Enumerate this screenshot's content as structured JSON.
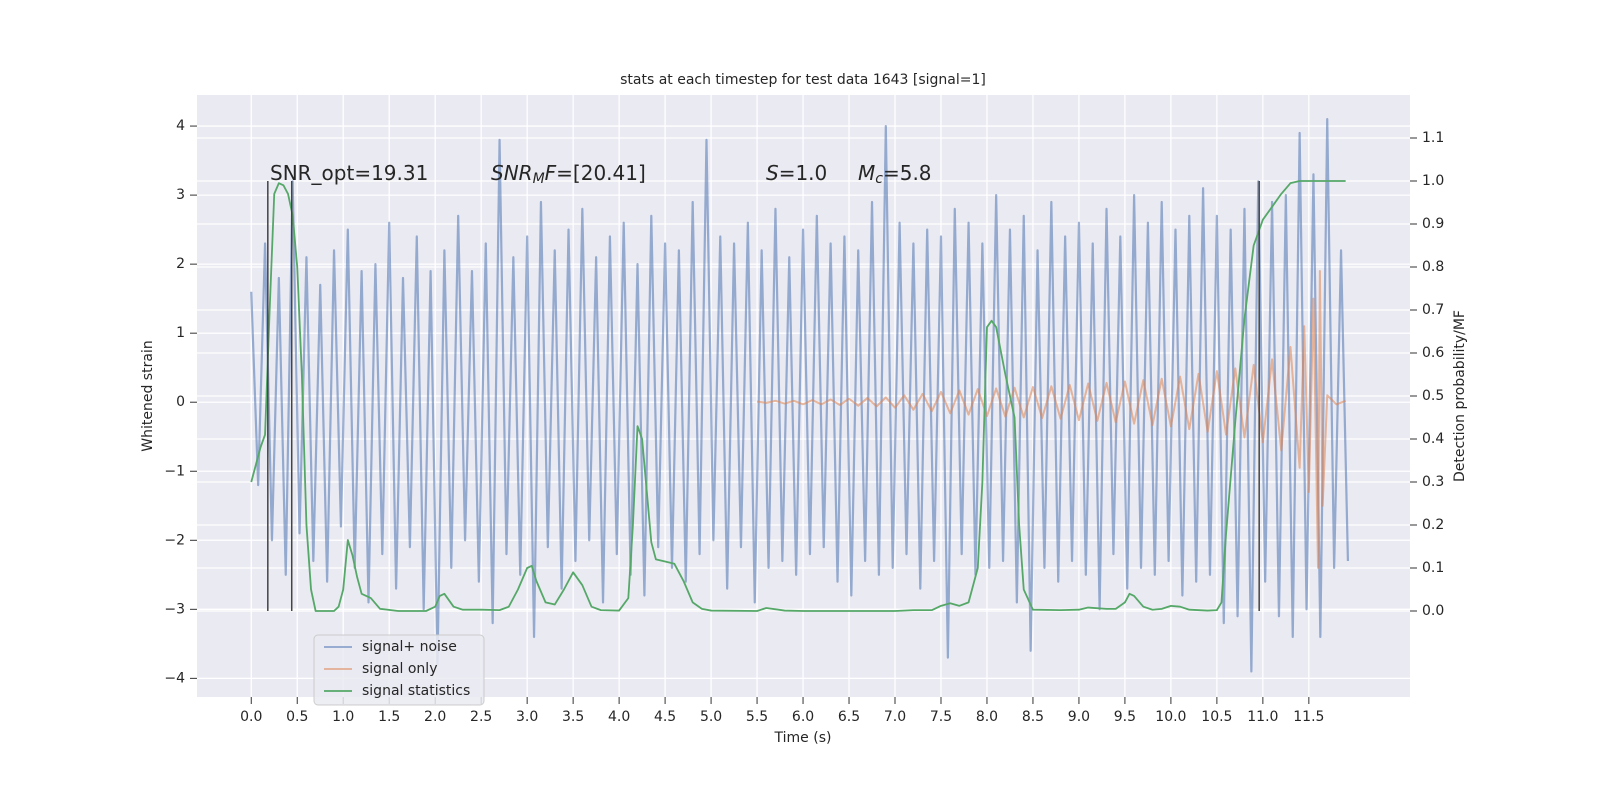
{
  "chart_data": {
    "type": "line",
    "title": "stats at each timestep for test data 1643 [signal=1]",
    "xlabel": "Time (s)",
    "ylabel": "Whitened strain",
    "y2label": "Detection probability/MF",
    "xlim": [
      -0.59,
      12.6
    ],
    "ylim": [
      -4.27,
      4.45
    ],
    "y2lim": [
      -0.2,
      1.2
    ],
    "grid": true,
    "legend": "lower left",
    "xticks": [
      {
        "value": 0,
        "label": "0.0"
      },
      0.5,
      {
        "value": 1,
        "label": "1.0"
      },
      1.5,
      {
        "value": 2,
        "label": "2.0"
      },
      2.5,
      {
        "value": 3,
        "label": "3.0"
      },
      3.5,
      {
        "value": 4,
        "label": "4.0"
      },
      4.5,
      {
        "value": 5,
        "label": "5.0"
      },
      5.5,
      {
        "value": 6,
        "label": "6.0"
      },
      6.5,
      {
        "value": 7,
        "label": "7.0"
      },
      7.5,
      {
        "value": 8,
        "label": "8.0"
      },
      8.5,
      {
        "value": 9,
        "label": "9.0"
      },
      9.5,
      {
        "value": 10,
        "label": "10.0"
      },
      10.5,
      {
        "value": 11,
        "label": "11.0"
      },
      11.5
    ],
    "yticks": [
      {
        "value": -4,
        "label": "−4"
      },
      {
        "value": -3,
        "label": "−3"
      },
      {
        "value": -2,
        "label": "−2"
      },
      {
        "value": -1,
        "label": "−1"
      },
      0,
      1,
      2,
      3,
      4
    ],
    "y2ticks": [
      {
        "value": 0,
        "label": "0.0"
      },
      0.1,
      0.2,
      0.3,
      0.4,
      0.5,
      0.6,
      0.7,
      0.8,
      0.9,
      {
        "value": 1,
        "label": "1.0"
      },
      1.1
    ],
    "annotations": [
      [
        {
          "text": "SNR_opt=19.31"
        }
      ],
      [
        {
          "text": "SNR",
          "italic": true
        },
        {
          "text": "M",
          "italic": true,
          "sub": true
        },
        {
          "text": "F",
          "italic": true
        },
        {
          "text": "=[20.41]"
        }
      ],
      [
        {
          "text": "S",
          "italic": true
        },
        {
          "text": "=1.0"
        }
      ],
      [
        {
          "text": "M",
          "italic": true
        },
        {
          "text": "c",
          "italic": true,
          "sub": true
        },
        {
          "text": "=5.8"
        }
      ]
    ],
    "vlines": {
      "x": [
        0.18,
        0.44,
        10.96
      ],
      "ymin": 0,
      "ymax": 1,
      "axis": "y2",
      "color": "#444444"
    },
    "series": [
      {
        "name": "signal+ noise",
        "color": "#4c72b0",
        "x": [
          0,
          0.075,
          0.15,
          0.225,
          0.3,
          0.375,
          0.45,
          0.525,
          0.6,
          0.675,
          0.75,
          0.825,
          0.9,
          0.975,
          1.05,
          1.125,
          1.2,
          1.275,
          1.35,
          1.425,
          1.5,
          1.575,
          1.65,
          1.725,
          1.8,
          1.875,
          1.95,
          2.025,
          2.1,
          2.175,
          2.25,
          2.325,
          2.4,
          2.475,
          2.55,
          2.625,
          2.7,
          2.775,
          2.85,
          2.925,
          3.0,
          3.075,
          3.15,
          3.225,
          3.3,
          3.375,
          3.45,
          3.525,
          3.6,
          3.675,
          3.75,
          3.825,
          3.9,
          3.975,
          4.05,
          4.125,
          4.2,
          4.275,
          4.35,
          4.425,
          4.5,
          4.575,
          4.65,
          4.725,
          4.8,
          4.875,
          4.95,
          5.025,
          5.1,
          5.175,
          5.25,
          5.325,
          5.4,
          5.475,
          5.55,
          5.625,
          5.7,
          5.775,
          5.85,
          5.925,
          6.0,
          6.075,
          6.15,
          6.225,
          6.3,
          6.375,
          6.45,
          6.525,
          6.6,
          6.675,
          6.75,
          6.825,
          6.9,
          6.975,
          7.05,
          7.125,
          7.2,
          7.275,
          7.35,
          7.425,
          7.5,
          7.575,
          7.65,
          7.725,
          7.8,
          7.875,
          7.95,
          8.025,
          8.1,
          8.175,
          8.25,
          8.325,
          8.4,
          8.475,
          8.55,
          8.625,
          8.7,
          8.775,
          8.85,
          8.925,
          9.0,
          9.075,
          9.15,
          9.225,
          9.3,
          9.375,
          9.45,
          9.525,
          9.6,
          9.675,
          9.75,
          9.825,
          9.9,
          9.975,
          10.05,
          10.125,
          10.2,
          10.275,
          10.35,
          10.425,
          10.5,
          10.575,
          10.65,
          10.725,
          10.8,
          10.875,
          10.95,
          11.025,
          11.1,
          11.175,
          11.25,
          11.325,
          11.4,
          11.475,
          11.55,
          11.625,
          11.7,
          11.775,
          11.85,
          11.925
        ],
        "values": [
          1.6,
          -1.2,
          2.3,
          -2.0,
          1.8,
          -2.5,
          3.2,
          -1.9,
          2.1,
          -2.3,
          1.7,
          -2.6,
          2.2,
          -1.8,
          2.5,
          -2.4,
          1.9,
          -2.9,
          2.0,
          -2.2,
          2.6,
          -2.7,
          1.8,
          -2.1,
          2.4,
          -3.0,
          1.9,
          -3.8,
          2.2,
          -2.4,
          2.7,
          -2.0,
          1.9,
          -2.6,
          2.3,
          -3.2,
          3.8,
          -2.2,
          2.1,
          -2.5,
          2.4,
          -3.4,
          2.9,
          -2.1,
          2.2,
          -2.7,
          2.5,
          -2.3,
          2.8,
          -2.0,
          2.1,
          -2.9,
          2.4,
          -2.2,
          2.6,
          -2.5,
          2.0,
          -2.8,
          2.7,
          -2.1,
          2.3,
          -2.4,
          2.2,
          -2.6,
          2.9,
          -2.2,
          3.8,
          -2.0,
          2.4,
          -2.7,
          2.3,
          -2.1,
          2.6,
          -2.9,
          2.2,
          -2.4,
          2.8,
          -2.3,
          2.1,
          -2.5,
          2.5,
          -2.2,
          2.7,
          -2.1,
          2.3,
          -2.6,
          2.4,
          -2.8,
          2.2,
          -2.3,
          2.9,
          -2.5,
          4.0,
          -2.4,
          2.6,
          -2.2,
          2.3,
          -2.7,
          2.5,
          -2.3,
          2.4,
          -3.7,
          2.8,
          -2.2,
          2.6,
          -2.5,
          2.3,
          -2.4,
          3.0,
          -2.3,
          2.5,
          -2.9,
          2.7,
          -3.6,
          2.2,
          -2.4,
          2.9,
          -2.6,
          2.4,
          -2.3,
          2.6,
          -2.5,
          2.3,
          -3.0,
          2.8,
          -2.2,
          2.4,
          -2.7,
          3.0,
          -2.4,
          2.6,
          -2.5,
          2.9,
          -2.3,
          2.5,
          -2.8,
          2.7,
          -2.6,
          3.1,
          -2.5,
          2.7,
          -3.2,
          2.5,
          -3.1,
          2.8,
          -3.9,
          3.2,
          -2.6,
          2.9,
          -3.1,
          3.0,
          -3.4,
          3.9,
          -3.0,
          3.3,
          -3.4,
          4.1,
          -2.4,
          2.2,
          -2.3
        ]
      },
      {
        "name": "signal only",
        "color": "#dd8452",
        "x": [
          5.5,
          5.6,
          5.7,
          5.8,
          5.9,
          6.0,
          6.1,
          6.2,
          6.3,
          6.4,
          6.5,
          6.6,
          6.7,
          6.8,
          6.9,
          7.0,
          7.1,
          7.2,
          7.3,
          7.4,
          7.5,
          7.6,
          7.7,
          7.8,
          7.9,
          8.0,
          8.1,
          8.2,
          8.3,
          8.4,
          8.5,
          8.6,
          8.7,
          8.8,
          8.9,
          9.0,
          9.1,
          9.2,
          9.3,
          9.4,
          9.5,
          9.6,
          9.7,
          9.8,
          9.9,
          10.0,
          10.1,
          10.2,
          10.3,
          10.4,
          10.5,
          10.6,
          10.7,
          10.8,
          10.9,
          11.0,
          11.1,
          11.2,
          11.3,
          11.4,
          11.45,
          11.5,
          11.55,
          11.6,
          11.62,
          11.65,
          11.7,
          11.8,
          11.9
        ],
        "values": [
          0.01,
          -0.01,
          0.02,
          -0.02,
          0.02,
          -0.03,
          0.03,
          -0.03,
          0.04,
          -0.04,
          0.05,
          -0.05,
          0.06,
          -0.06,
          0.07,
          -0.08,
          0.1,
          -0.11,
          0.12,
          -0.13,
          0.15,
          -0.16,
          0.17,
          -0.18,
          0.19,
          -0.2,
          0.2,
          -0.21,
          0.21,
          -0.22,
          0.22,
          -0.23,
          0.23,
          -0.24,
          0.25,
          -0.26,
          0.27,
          -0.27,
          0.28,
          -0.29,
          0.3,
          -0.31,
          0.32,
          -0.33,
          0.34,
          -0.35,
          0.37,
          -0.39,
          0.41,
          -0.43,
          0.45,
          -0.47,
          0.49,
          -0.51,
          0.54,
          -0.58,
          0.62,
          -0.7,
          0.8,
          -0.95,
          1.1,
          -1.3,
          1.5,
          -2.4,
          1.9,
          -1.5,
          0.1,
          -0.03,
          0.02
        ]
      },
      {
        "name": "signal statistics",
        "color": "#55a868",
        "axis": "y2",
        "x": [
          0.0,
          0.1,
          0.15,
          0.2,
          0.25,
          0.3,
          0.35,
          0.4,
          0.45,
          0.5,
          0.55,
          0.6,
          0.65,
          0.7,
          0.8,
          0.9,
          0.95,
          1.0,
          1.05,
          1.1,
          1.15,
          1.2,
          1.3,
          1.4,
          1.6,
          1.9,
          2.0,
          2.05,
          2.1,
          2.2,
          2.3,
          2.5,
          2.7,
          2.8,
          2.9,
          3.0,
          3.05,
          3.1,
          3.2,
          3.3,
          3.4,
          3.5,
          3.6,
          3.7,
          3.8,
          4.0,
          4.1,
          4.15,
          4.2,
          4.25,
          4.3,
          4.35,
          4.4,
          4.5,
          4.6,
          4.7,
          4.8,
          4.9,
          5.0,
          5.5,
          5.6,
          5.8,
          6.0,
          6.5,
          7.0,
          7.2,
          7.4,
          7.5,
          7.6,
          7.7,
          7.8,
          7.9,
          7.95,
          8.0,
          8.05,
          8.1,
          8.2,
          8.3,
          8.35,
          8.4,
          8.5,
          8.8,
          9.0,
          9.1,
          9.3,
          9.4,
          9.5,
          9.55,
          9.6,
          9.7,
          9.8,
          9.9,
          10.0,
          10.1,
          10.2,
          10.4,
          10.5,
          10.55,
          10.6,
          10.7,
          10.8,
          10.9,
          11.0,
          11.1,
          11.2,
          11.3,
          11.4,
          11.5,
          11.6,
          11.7,
          11.9
        ],
        "values": [
          0.3,
          0.38,
          0.41,
          0.7,
          0.97,
          0.995,
          0.99,
          0.97,
          0.92,
          0.8,
          0.55,
          0.2,
          0.05,
          0.0,
          0.0,
          0.0,
          0.01,
          0.05,
          0.165,
          0.13,
          0.08,
          0.04,
          0.03,
          0.005,
          0.0,
          0.0,
          0.01,
          0.035,
          0.04,
          0.01,
          0.003,
          0.003,
          0.002,
          0.01,
          0.05,
          0.1,
          0.105,
          0.07,
          0.02,
          0.015,
          0.05,
          0.09,
          0.06,
          0.01,
          0.002,
          0.001,
          0.03,
          0.2,
          0.43,
          0.4,
          0.28,
          0.16,
          0.12,
          0.115,
          0.11,
          0.07,
          0.02,
          0.005,
          0.001,
          0.0,
          0.007,
          0.001,
          0.0,
          0.0,
          0.0,
          0.002,
          0.002,
          0.012,
          0.018,
          0.012,
          0.02,
          0.1,
          0.3,
          0.66,
          0.675,
          0.66,
          0.55,
          0.45,
          0.2,
          0.05,
          0.003,
          0.002,
          0.003,
          0.008,
          0.005,
          0.005,
          0.02,
          0.04,
          0.035,
          0.01,
          0.003,
          0.005,
          0.012,
          0.01,
          0.003,
          0.001,
          0.002,
          0.02,
          0.18,
          0.44,
          0.68,
          0.85,
          0.91,
          0.94,
          0.97,
          0.995,
          1.0,
          1.0,
          1.0,
          1.0,
          1.0
        ]
      }
    ]
  }
}
